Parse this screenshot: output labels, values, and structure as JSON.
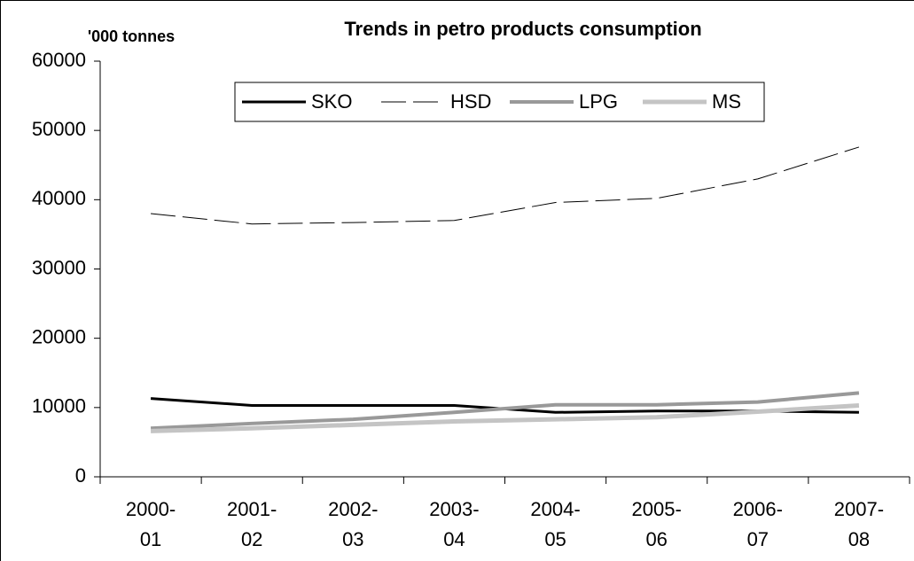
{
  "chart_data": {
    "type": "line",
    "title": "Trends in petro products consumption",
    "y_label": "'000 tonnes",
    "categories": [
      "2000-01",
      "2001-02",
      "2002-03",
      "2003-04",
      "2004-05",
      "2005-06",
      "2006-07",
      "2007-08"
    ],
    "series": [
      {
        "name": "SKO",
        "color": "#000000",
        "line_width": 3,
        "dashed": false,
        "values": [
          11300,
          10300,
          10300,
          10300,
          9300,
          9500,
          9500,
          9300
        ]
      },
      {
        "name": "HSD",
        "color": "#000000",
        "line_width": 1,
        "dashed": true,
        "values": [
          38000,
          36500,
          36700,
          37000,
          39600,
          40200,
          43000,
          47600
        ]
      },
      {
        "name": "LPG",
        "color": "#999999",
        "line_width": 4,
        "dashed": false,
        "values": [
          7000,
          7700,
          8300,
          9300,
          10400,
          10400,
          10800,
          12100
        ]
      },
      {
        "name": "MS",
        "color": "#c4c4c4",
        "line_width": 5,
        "dashed": false,
        "values": [
          6600,
          7000,
          7500,
          8000,
          8300,
          8600,
          9400,
          10300
        ]
      }
    ],
    "ylim": [
      0,
      60000
    ],
    "yticks": [
      0,
      10000,
      20000,
      30000,
      40000,
      50000,
      60000
    ],
    "grid": false,
    "legend": "top"
  }
}
